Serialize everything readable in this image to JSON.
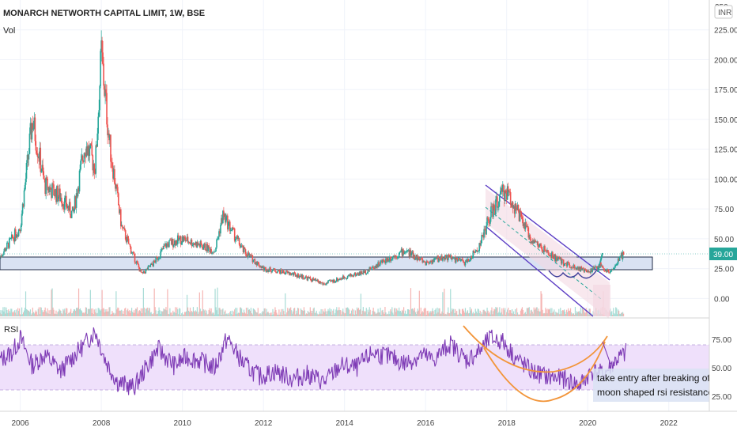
{
  "header": {
    "title": "MONARCH NETWORTH CAPITAL LIMIT, 1W, BSE",
    "volume_label": "Vol",
    "currency": "INR"
  },
  "price_axis": {
    "ticks": [
      "225.00",
      "200.00",
      "175.00",
      "150.00",
      "125.00",
      "100.00",
      "75.00",
      "50.00",
      "25.00",
      "0.00"
    ],
    "top_partial": "250",
    "current_price": "39.00"
  },
  "rsi_panel": {
    "label": "RSI",
    "ticks": [
      "75.00",
      "50.00",
      "25.00"
    ]
  },
  "time_axis": {
    "ticks": [
      "2006",
      "2008",
      "2010",
      "2012",
      "2014",
      "2016",
      "2018",
      "2020",
      "2022"
    ]
  },
  "annotation": {
    "line1": "take entry after breaking of",
    "line2": "moon shaped rsi resistance ."
  },
  "colors": {
    "up": "#26a69a",
    "down": "#ef5350",
    "support_zone": "#d9e2f3",
    "support_border": "#1f2a44",
    "channel": "#5b3cc4",
    "rsi_line": "#7e3bb5",
    "rsi_band": "#efe0fb",
    "curve": "#f2953a",
    "price_badge": "#26a69a"
  },
  "chart_data": {
    "type": "line",
    "x_unit": "year",
    "price": {
      "x": [
        2005.5,
        2006.0,
        2006.3,
        2006.6,
        2007.0,
        2007.3,
        2007.6,
        2007.85,
        2008.0,
        2008.2,
        2008.5,
        2008.8,
        2009.0,
        2009.3,
        2009.6,
        2010.0,
        2010.4,
        2010.8,
        2011.0,
        2011.5,
        2012.0,
        2012.5,
        2013.0,
        2013.5,
        2014.0,
        2014.5,
        2015.0,
        2015.5,
        2016.0,
        2016.5,
        2017.0,
        2017.3,
        2017.6,
        2017.9,
        2018.0,
        2018.3,
        2018.6,
        2019.0,
        2019.4,
        2019.8,
        2020.0,
        2020.3,
        2020.5,
        2020.7,
        2020.9
      ],
      "close": [
        35,
        60,
        150,
        95,
        85,
        70,
        130,
        110,
        205,
        130,
        60,
        35,
        20,
        30,
        45,
        50,
        45,
        40,
        70,
        40,
        25,
        22,
        18,
        12,
        18,
        22,
        32,
        40,
        30,
        35,
        30,
        42,
        70,
        88,
        90,
        70,
        50,
        38,
        30,
        25,
        22,
        28,
        22,
        28,
        39
      ],
      "ylim": [
        -15,
        250
      ]
    },
    "rsi": {
      "x": [
        2005.5,
        2005.8,
        2006.0,
        2006.3,
        2006.6,
        2007.0,
        2007.3,
        2007.6,
        2007.85,
        2008.1,
        2008.4,
        2008.8,
        2009.1,
        2009.4,
        2009.8,
        2010.1,
        2010.4,
        2010.8,
        2011.1,
        2011.5,
        2011.9,
        2012.3,
        2012.7,
        2013.1,
        2013.5,
        2013.9,
        2014.3,
        2014.7,
        2015.1,
        2015.5,
        2015.9,
        2016.2,
        2016.6,
        2017.0,
        2017.3,
        2017.6,
        2017.9,
        2018.2,
        2018.6,
        2019.0,
        2019.4,
        2019.8,
        2020.1,
        2020.4,
        2020.7,
        2020.9,
        2021.1
      ],
      "values": [
        55,
        62,
        75,
        50,
        60,
        45,
        58,
        70,
        82,
        55,
        35,
        30,
        48,
        65,
        50,
        58,
        55,
        48,
        75,
        52,
        40,
        45,
        38,
        42,
        35,
        50,
        48,
        62,
        58,
        52,
        60,
        55,
        70,
        55,
        62,
        75,
        72,
        58,
        45,
        40,
        38,
        32,
        45,
        42,
        55,
        60,
        68
      ],
      "ylim": [
        10,
        92
      ],
      "upper_band": 70,
      "lower_band": 30
    },
    "xlim": [
      2005.5,
      2023.0
    ]
  }
}
